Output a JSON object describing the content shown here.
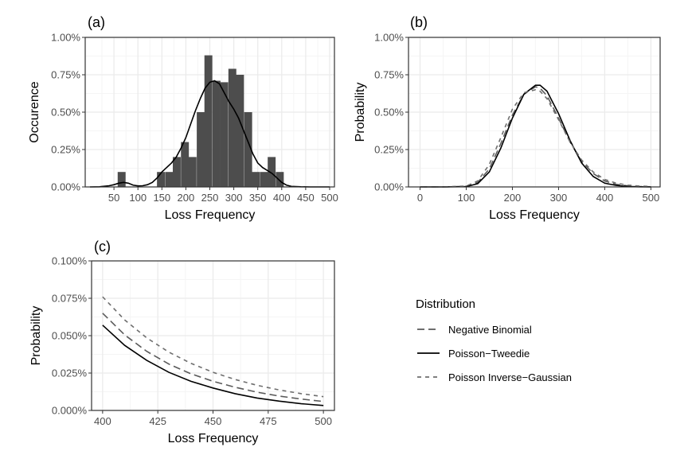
{
  "chart_data": [
    {
      "panel": "(a)",
      "type": "histogram+density",
      "xlabel": "Loss Frequency",
      "ylabel": "Occurence",
      "xlim": [
        -10,
        510
      ],
      "ylim": [
        0,
        0.01
      ],
      "xticks": [
        50,
        100,
        150,
        200,
        250,
        300,
        350,
        400,
        450,
        500
      ],
      "xtick_labels": [
        "50",
        "100",
        "150",
        "200",
        "250",
        "300",
        "350",
        "400",
        "450",
        "500"
      ],
      "yticks": [
        0,
        0.0025,
        0.005,
        0.0075,
        0.01
      ],
      "ytick_labels": [
        "0.00%",
        "0.25%",
        "0.50%",
        "0.75%",
        "1.00%"
      ],
      "grid": true,
      "bin_width": 16.5,
      "bars": [
        {
          "x": 66,
          "value": 0.001
        },
        {
          "x": 148,
          "value": 0.001
        },
        {
          "x": 165,
          "value": 0.001
        },
        {
          "x": 181,
          "value": 0.002
        },
        {
          "x": 198,
          "value": 0.003
        },
        {
          "x": 214,
          "value": 0.002
        },
        {
          "x": 231,
          "value": 0.005
        },
        {
          "x": 247,
          "value": 0.0088
        },
        {
          "x": 264,
          "value": 0.0071
        },
        {
          "x": 280,
          "value": 0.007
        },
        {
          "x": 297,
          "value": 0.0079
        },
        {
          "x": 313,
          "value": 0.0075
        },
        {
          "x": 330,
          "value": 0.005
        },
        {
          "x": 346,
          "value": 0.001
        },
        {
          "x": 363,
          "value": 0.001
        },
        {
          "x": 379,
          "value": 0.002
        },
        {
          "x": 396,
          "value": 0.001
        }
      ],
      "density": {
        "x": [
          0,
          20,
          40,
          50,
          60,
          70,
          80,
          90,
          100,
          110,
          120,
          130,
          140,
          150,
          160,
          170,
          180,
          190,
          200,
          210,
          220,
          230,
          240,
          250,
          260,
          270,
          280,
          290,
          300,
          310,
          320,
          330,
          340,
          350,
          360,
          370,
          380,
          390,
          400,
          410,
          420,
          440,
          460,
          480,
          500
        ],
        "y": [
          0.0,
          1e-05,
          8e-05,
          0.00015,
          0.00025,
          0.0003,
          0.00025,
          0.00012,
          7e-05,
          8e-05,
          0.00015,
          0.0003,
          0.0006,
          0.001,
          0.0013,
          0.0016,
          0.002,
          0.0026,
          0.0033,
          0.0042,
          0.0051,
          0.0059,
          0.0066,
          0.007,
          0.0071,
          0.0069,
          0.0063,
          0.0057,
          0.0052,
          0.0046,
          0.0038,
          0.003,
          0.0022,
          0.0016,
          0.0013,
          0.0011,
          0.0009,
          0.0006,
          0.0003,
          0.00012,
          4e-05,
          1e-05,
          0.0,
          0.0,
          0.0
        ]
      }
    },
    {
      "panel": "(b)",
      "type": "line",
      "xlabel": "Loss Frequency",
      "ylabel": "Probability",
      "xlim": [
        -25,
        520
      ],
      "ylim": [
        0,
        0.01
      ],
      "xticks": [
        0,
        100,
        200,
        300,
        400,
        500
      ],
      "xtick_labels": [
        "0",
        "100",
        "200",
        "300",
        "400",
        "500"
      ],
      "yticks": [
        0,
        0.0025,
        0.005,
        0.0075,
        0.01
      ],
      "ytick_labels": [
        "0.00%",
        "0.25%",
        "0.50%",
        "0.75%",
        "1.00%"
      ],
      "grid": true,
      "x": [
        0,
        50,
        100,
        125,
        150,
        175,
        200,
        225,
        250,
        260,
        275,
        300,
        325,
        350,
        375,
        400,
        425,
        450,
        475,
        500
      ],
      "series": [
        {
          "name": "Negative Binomial",
          "style": "longdash",
          "values": [
            0.0,
            0.0,
            4e-05,
            0.0003,
            0.0012,
            0.0029,
            0.0048,
            0.0062,
            0.0067,
            0.0066,
            0.0061,
            0.0046,
            0.003,
            0.0017,
            0.0009,
            0.0004,
            0.00017,
            7e-05,
            3e-05,
            1e-05
          ]
        },
        {
          "name": "Poisson-Tweedie",
          "style": "solid",
          "values": [
            0.0,
            0.0,
            2e-05,
            0.00022,
            0.001,
            0.0026,
            0.0046,
            0.0062,
            0.0068,
            0.0068,
            0.0064,
            0.0049,
            0.0031,
            0.0016,
            0.0007,
            0.00025,
            0.0001,
            3e-05,
            1e-05,
            0.0
          ]
        },
        {
          "name": "Poisson Inverse-Gaussian",
          "style": "dashed",
          "values": [
            0.0,
            0.0,
            6e-05,
            0.0004,
            0.0015,
            0.0033,
            0.0052,
            0.0063,
            0.0065,
            0.0064,
            0.0059,
            0.0045,
            0.003,
            0.0018,
            0.001,
            0.0005,
            0.00025,
            0.00012,
            6e-05,
            3e-05
          ]
        }
      ]
    },
    {
      "panel": "(c)",
      "type": "line",
      "xlabel": "Loss Frequency",
      "ylabel": "Probability",
      "xlim": [
        395,
        505
      ],
      "ylim": [
        0,
        0.001
      ],
      "xticks": [
        400,
        425,
        450,
        475,
        500
      ],
      "xtick_labels": [
        "400",
        "425",
        "450",
        "475",
        "500"
      ],
      "yticks": [
        0,
        0.00025,
        0.0005,
        0.00075,
        0.001
      ],
      "ytick_labels": [
        "0.000%",
        "0.025%",
        "0.050%",
        "0.075%",
        "0.100%"
      ],
      "grid": true,
      "x": [
        400,
        410,
        420,
        430,
        440,
        450,
        460,
        470,
        480,
        490,
        500
      ],
      "series": [
        {
          "name": "Negative Binomial",
          "style": "longdash",
          "values": [
            0.00065,
            0.000505,
            0.000395,
            0.00031,
            0.000245,
            0.000195,
            0.000155,
            0.000122,
            9.6e-05,
            7.6e-05,
            6e-05
          ]
        },
        {
          "name": "Poisson-Tweedie",
          "style": "solid",
          "values": [
            0.00057,
            0.000435,
            0.000335,
            0.000255,
            0.000195,
            0.00015,
            0.000112,
            8.3e-05,
            6.2e-05,
            4.5e-05,
            3.3e-05
          ]
        },
        {
          "name": "Poisson Inverse-Gaussian",
          "style": "dashed",
          "values": [
            0.00076,
            0.000605,
            0.000485,
            0.00039,
            0.000315,
            0.000255,
            0.000207,
            0.000168,
            0.000137,
            0.000112,
            9.2e-05
          ]
        }
      ]
    }
  ],
  "legend": {
    "title": "Distribution",
    "items": [
      {
        "label": "Negative Binomial",
        "style": "longdash"
      },
      {
        "label": "Poisson−Tweedie",
        "style": "solid"
      },
      {
        "label": "Poisson Inverse−Gaussian",
        "style": "dashed"
      }
    ]
  },
  "colors": {
    "bar": "#4d4d4d",
    "density": "#000000",
    "longdash": "#5a5a5a",
    "solid": "#000000",
    "dashed": "#6e6e6e",
    "grid_major": "#ebebeb",
    "grid_minor": "#f5f5f5",
    "panel_border": "#333333"
  }
}
